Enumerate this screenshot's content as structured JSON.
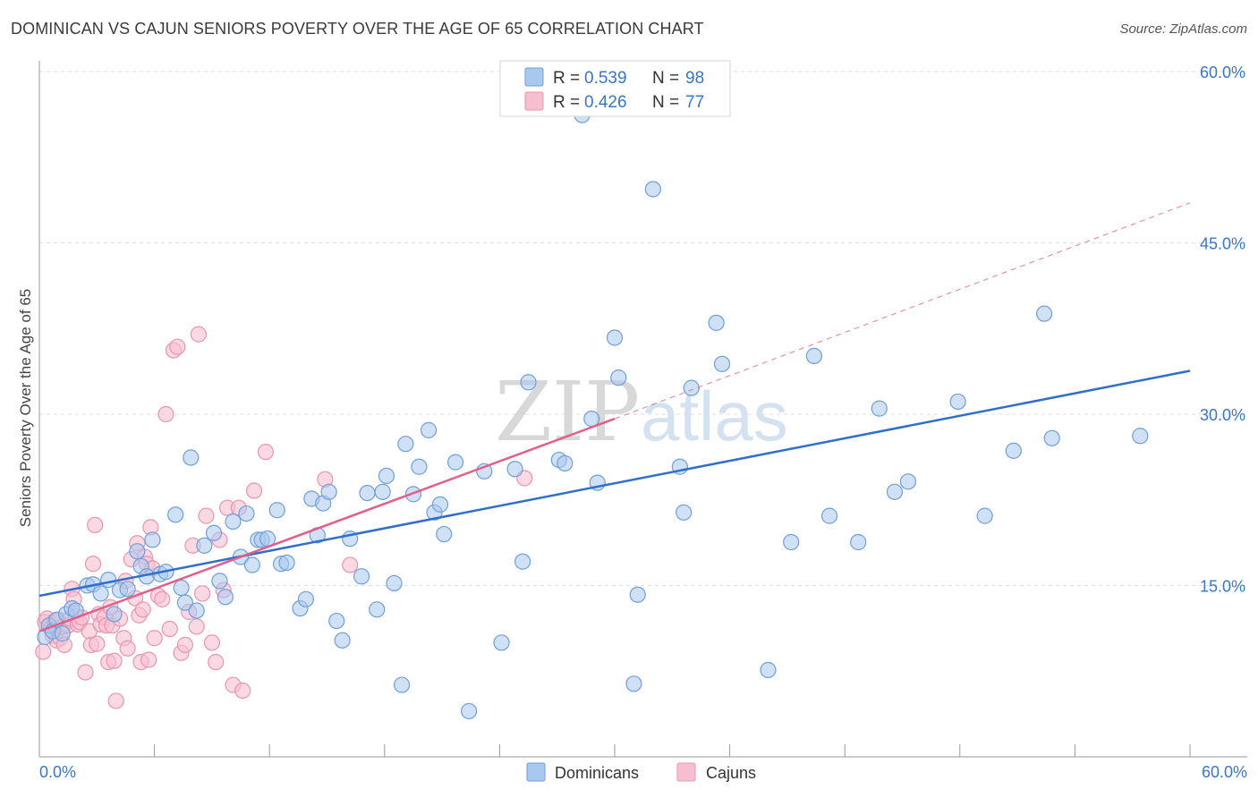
{
  "title": "DOMINICAN VS CAJUN SENIORS POVERTY OVER THE AGE OF 65 CORRELATION CHART",
  "source": "Source: ZipAtlas.com",
  "watermark": {
    "zip": "ZIP",
    "atlas": "atlas"
  },
  "legend": {
    "rows": [
      {
        "r_label": "R =",
        "r_value": "0.539",
        "n_label": "N =",
        "n_value": "98"
      },
      {
        "r_label": "R =",
        "r_value": "0.426",
        "n_label": "N =",
        "n_value": "77"
      }
    ]
  },
  "bottom_legend": [
    "Dominicans",
    "Cajuns"
  ],
  "colors": {
    "dominicans_fill": "#a9c8ef",
    "dominicans_stroke": "#6f9fd8",
    "dominicans_line": "#2f6fcb",
    "cajuns_fill": "#f6bfd0",
    "cajuns_stroke": "#e895b0",
    "cajuns_line": "#e0608a",
    "grid": "#dedede",
    "axis": "#999999"
  },
  "chart_data": {
    "type": "scatter",
    "title": "DOMINICAN VS CAJUN SENIORS POVERTY OVER THE AGE OF 65 CORRELATION CHART",
    "xlabel": "",
    "ylabel": "Seniors Poverty Over the Age of 65",
    "xlim": [
      0,
      60
    ],
    "ylim": [
      0,
      60
    ],
    "x_tick_labels": [
      "0.0%",
      "60.0%"
    ],
    "y_tick_labels": [
      "15.0%",
      "30.0%",
      "45.0%",
      "60.0%"
    ],
    "y_ticks": [
      15,
      30,
      45,
      60
    ],
    "grid": true,
    "legend_position": "top-center",
    "series": [
      {
        "name": "Dominicans",
        "R": 0.539,
        "N": 98,
        "trend": {
          "x": [
            0,
            60
          ],
          "y": [
            14.1,
            33.8
          ],
          "style": "solid"
        },
        "points": [
          [
            0.3,
            10.5
          ],
          [
            0.5,
            11.5
          ],
          [
            0.7,
            11
          ],
          [
            0.9,
            12
          ],
          [
            1.2,
            10.8
          ],
          [
            1.4,
            12.5
          ],
          [
            1.7,
            13
          ],
          [
            1.9,
            12.8
          ],
          [
            2.5,
            15
          ],
          [
            2.8,
            15.1
          ],
          [
            3.2,
            14.3
          ],
          [
            3.6,
            15.5
          ],
          [
            3.9,
            12.5
          ],
          [
            4.2,
            14.6
          ],
          [
            4.6,
            14.7
          ],
          [
            5.1,
            18
          ],
          [
            5.3,
            16.7
          ],
          [
            5.6,
            15.8
          ],
          [
            5.9,
            19
          ],
          [
            6.3,
            16
          ],
          [
            6.6,
            16.2
          ],
          [
            7.1,
            21.2
          ],
          [
            7.4,
            14.8
          ],
          [
            7.6,
            13.5
          ],
          [
            7.9,
            26.2
          ],
          [
            8.2,
            12.8
          ],
          [
            8.6,
            18.5
          ],
          [
            9.1,
            19.6
          ],
          [
            9.4,
            15.4
          ],
          [
            9.7,
            14
          ],
          [
            10.1,
            20.6
          ],
          [
            10.5,
            17.5
          ],
          [
            10.8,
            21.3
          ],
          [
            11.1,
            16.8
          ],
          [
            11.4,
            19
          ],
          [
            11.6,
            19
          ],
          [
            11.9,
            19.1
          ],
          [
            12.4,
            21.6
          ],
          [
            12.6,
            16.9
          ],
          [
            12.9,
            17
          ],
          [
            13.6,
            13
          ],
          [
            13.9,
            13.8
          ],
          [
            14.2,
            22.6
          ],
          [
            14.5,
            19.4
          ],
          [
            14.8,
            22.2
          ],
          [
            15.1,
            23.2
          ],
          [
            15.5,
            11.9
          ],
          [
            15.8,
            10.2
          ],
          [
            16.2,
            19.1
          ],
          [
            16.8,
            15.8
          ],
          [
            17.1,
            23.1
          ],
          [
            17.6,
            12.9
          ],
          [
            17.9,
            23.2
          ],
          [
            18.1,
            24.6
          ],
          [
            18.5,
            15.2
          ],
          [
            18.9,
            6.3
          ],
          [
            19.1,
            27.4
          ],
          [
            19.5,
            23
          ],
          [
            19.8,
            25.4
          ],
          [
            20.3,
            28.6
          ],
          [
            20.6,
            21.4
          ],
          [
            20.9,
            22.1
          ],
          [
            21.1,
            19.5
          ],
          [
            21.7,
            25.8
          ],
          [
            22.4,
            4
          ],
          [
            23.2,
            25
          ],
          [
            24.1,
            10
          ],
          [
            24.8,
            25.2
          ],
          [
            25.2,
            17.1
          ],
          [
            25.5,
            32.8
          ],
          [
            27.1,
            26
          ],
          [
            27.4,
            25.7
          ],
          [
            28.3,
            56.2
          ],
          [
            28.8,
            29.6
          ],
          [
            29.1,
            24
          ],
          [
            30.0,
            36.7
          ],
          [
            30.2,
            33.2
          ],
          [
            31.0,
            6.4
          ],
          [
            31.2,
            14.2
          ],
          [
            32.0,
            49.7
          ],
          [
            33.4,
            25.4
          ],
          [
            33.6,
            21.4
          ],
          [
            34.0,
            32.3
          ],
          [
            35.3,
            38
          ],
          [
            35.6,
            34.4
          ],
          [
            38.0,
            7.6
          ],
          [
            39.2,
            18.8
          ],
          [
            40.4,
            35.1
          ],
          [
            41.2,
            21.1
          ],
          [
            42.7,
            18.8
          ],
          [
            43.8,
            30.5
          ],
          [
            44.6,
            23.2
          ],
          [
            45.3,
            24.1
          ],
          [
            47.9,
            31.1
          ],
          [
            49.3,
            21.1
          ],
          [
            50.8,
            26.8
          ],
          [
            52.4,
            38.8
          ],
          [
            52.8,
            27.9
          ],
          [
            57.4,
            28.1
          ]
        ]
      },
      {
        "name": "Cajuns",
        "R": 0.426,
        "N": 77,
        "trend": {
          "x": [
            0,
            30
          ],
          "y": [
            11.0,
            29.6
          ],
          "style": "solid"
        },
        "trend_extension": {
          "x": [
            30,
            60
          ],
          "y": [
            29.6,
            48.5
          ],
          "style": "dashed"
        },
        "points": [
          [
            0.2,
            9.2
          ],
          [
            0.3,
            11.8
          ],
          [
            0.4,
            12.1
          ],
          [
            0.6,
            11.2
          ],
          [
            0.7,
            10.6
          ],
          [
            0.8,
            11.9
          ],
          [
            0.9,
            10.2
          ],
          [
            1.0,
            12.0
          ],
          [
            1.1,
            10.4
          ],
          [
            1.2,
            11.4
          ],
          [
            1.3,
            9.8
          ],
          [
            1.5,
            11.5
          ],
          [
            1.6,
            12.1
          ],
          [
            1.7,
            14.7
          ],
          [
            1.8,
            13.8
          ],
          [
            1.9,
            12.3
          ],
          [
            2.0,
            11.6
          ],
          [
            2.1,
            11.8
          ],
          [
            2.2,
            12.2
          ],
          [
            2.4,
            7.4
          ],
          [
            2.6,
            11.0
          ],
          [
            2.7,
            9.8
          ],
          [
            2.8,
            16.9
          ],
          [
            2.9,
            20.3
          ],
          [
            3.0,
            9.9
          ],
          [
            3.1,
            12.5
          ],
          [
            3.2,
            11.6
          ],
          [
            3.4,
            12.2
          ],
          [
            3.5,
            11.5
          ],
          [
            3.6,
            8.3
          ],
          [
            3.7,
            13.1
          ],
          [
            3.8,
            11.5
          ],
          [
            3.9,
            8.4
          ],
          [
            4.0,
            4.9
          ],
          [
            4.2,
            12.1
          ],
          [
            4.4,
            10.4
          ],
          [
            4.5,
            15.4
          ],
          [
            4.6,
            9.5
          ],
          [
            4.8,
            17.3
          ],
          [
            5.0,
            13.9
          ],
          [
            5.1,
            18.7
          ],
          [
            5.2,
            12.4
          ],
          [
            5.3,
            8.3
          ],
          [
            5.4,
            12.9
          ],
          [
            5.5,
            17.5
          ],
          [
            5.6,
            16.9
          ],
          [
            5.7,
            8.5
          ],
          [
            5.8,
            20.1
          ],
          [
            5.9,
            16.5
          ],
          [
            6.0,
            10.4
          ],
          [
            6.2,
            14.1
          ],
          [
            6.4,
            13.8
          ],
          [
            6.6,
            30.0
          ],
          [
            6.8,
            11.2
          ],
          [
            7.0,
            35.6
          ],
          [
            7.2,
            35.9
          ],
          [
            7.4,
            9.1
          ],
          [
            7.6,
            9.8
          ],
          [
            7.8,
            12.7
          ],
          [
            8.0,
            18.5
          ],
          [
            8.2,
            11.4
          ],
          [
            8.3,
            37.0
          ],
          [
            8.5,
            14.3
          ],
          [
            8.7,
            21.1
          ],
          [
            9.0,
            10.0
          ],
          [
            9.2,
            8.3
          ],
          [
            9.4,
            19.0
          ],
          [
            9.6,
            14.6
          ],
          [
            9.8,
            21.8
          ],
          [
            10.1,
            6.3
          ],
          [
            10.4,
            21.8
          ],
          [
            10.6,
            5.8
          ],
          [
            11.2,
            23.3
          ],
          [
            11.8,
            26.7
          ],
          [
            14.9,
            24.3
          ],
          [
            16.2,
            16.8
          ],
          [
            25.3,
            24.4
          ]
        ]
      }
    ]
  }
}
